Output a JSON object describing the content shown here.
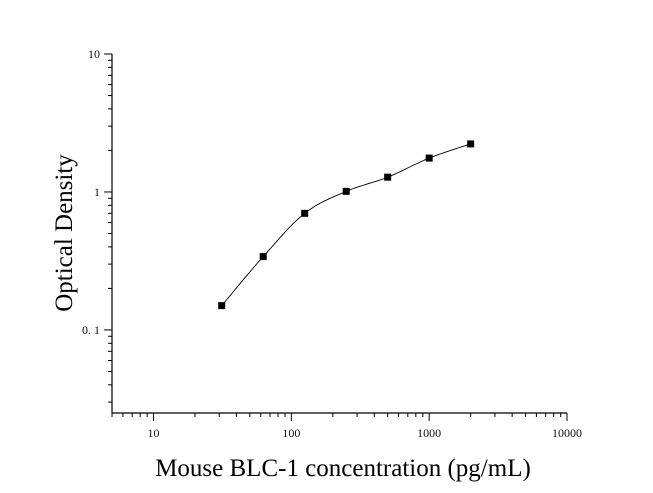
{
  "chart_data": {
    "type": "scatter",
    "title": "",
    "xlabel": "Mouse BLC-1 concentration (pg/mL)",
    "ylabel": "Optical Density",
    "x_scale": "log",
    "y_scale": "log",
    "xlim": [
      5,
      10000
    ],
    "ylim": [
      0.025,
      10
    ],
    "x_ticks": [
      10,
      100,
      1000,
      10000
    ],
    "x_tick_labels": [
      "10",
      "100",
      "1000",
      "10000"
    ],
    "y_ticks": [
      0.1,
      1,
      10
    ],
    "y_tick_labels": [
      "0. 1",
      "1",
      "10"
    ],
    "grid": false,
    "legend": "none",
    "series": [
      {
        "x": [
          31.25,
          62.5,
          125,
          250,
          500,
          1000,
          2000
        ],
        "y": [
          0.15,
          0.34,
          0.7,
          1.01,
          1.28,
          1.76,
          2.23
        ],
        "marker": "square",
        "fitted_curve": true
      }
    ],
    "colors": {
      "axis": "#000000",
      "marker": "#000000",
      "curve": "#000000"
    }
  }
}
